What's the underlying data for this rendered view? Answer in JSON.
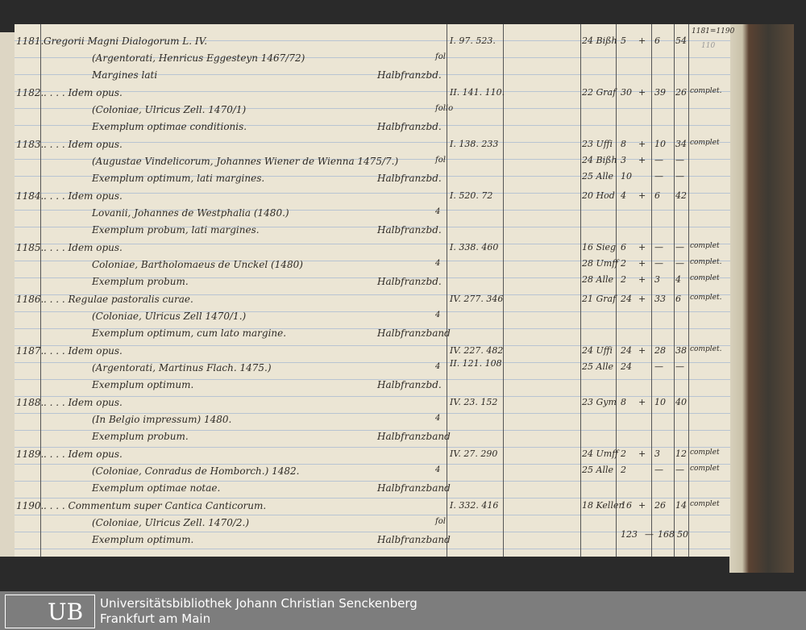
{
  "header": {
    "range": "1181=1190",
    "mark": "110"
  },
  "entries": [
    {
      "num": "1181.",
      "lines": [
        "Gregorii Magni Dialogorum L. IV.",
        "(Argentorati, Henricus Eggesteyn 1467/72)",
        "Margines lati"
      ],
      "format": "fol",
      "binding": "Halbfranzbd.",
      "refs": [
        "I. 97. 523."
      ],
      "rows": [
        [
          "24 Bißh",
          "5",
          "+",
          "6",
          "54",
          ""
        ]
      ]
    },
    {
      "num": "1182.",
      "lines": [
        ". . . .  Idem opus.",
        "(Coloniae, Ulricus Zell. 1470/1)",
        "Exemplum optimae conditionis."
      ],
      "format": "folio",
      "binding": "Halbfranzbd.",
      "refs": [
        "II. 141. 110."
      ],
      "rows": [
        [
          "22 Graf",
          "30",
          "+",
          "39",
          "26",
          "complet."
        ]
      ]
    },
    {
      "num": "1183.",
      "lines": [
        ". . . .  Idem opus.",
        "(Augustae Vindelicorum, Johannes Wiener de Wienna 1475/7.)",
        "Exemplum optimum, lati margines."
      ],
      "format": "fol",
      "binding": "Halbfranzbd.",
      "refs": [
        "I. 138. 233"
      ],
      "rows": [
        [
          "23 Uffi",
          "8",
          "+",
          "10",
          "34",
          "complet"
        ],
        [
          "24 Bißh",
          "3",
          "+",
          "—",
          "—",
          ""
        ],
        [
          "25 Alle",
          "10",
          "",
          "—",
          "—",
          ""
        ]
      ]
    },
    {
      "num": "1184.",
      "lines": [
        ". . . .  Idem opus.",
        "Lovanii, Johannes de Westphalia (1480.)",
        "Exemplum probum, lati margines."
      ],
      "format": "4",
      "binding": "Halbfranzbd.",
      "refs": [
        "I. 520. 72"
      ],
      "rows": [
        [
          "20 Hod",
          "4",
          "+",
          "6",
          "42",
          ""
        ]
      ]
    },
    {
      "num": "1185.",
      "lines": [
        ". . . .  Idem opus.",
        "Coloniae, Bartholomaeus de Unckel (1480)",
        "Exemplum probum."
      ],
      "format": "4",
      "binding": "Halbfranzbd.",
      "refs": [
        "I. 338. 460"
      ],
      "rows": [
        [
          "16 Sieg",
          "6",
          "+",
          "—",
          "—",
          "complet"
        ],
        [
          "28 Umff",
          "2",
          "+",
          "—",
          "—",
          "complet."
        ],
        [
          "28 Alle",
          "2",
          "+",
          "3",
          "4",
          "complet"
        ]
      ]
    },
    {
      "num": "1186.",
      "lines": [
        ". . . .  Regulae pastoralis curae.",
        "(Coloniae, Ulricus Zell 1470/1.)",
        "Exemplum optimum, cum lato margine."
      ],
      "format": "4",
      "binding": "Halbfranzband",
      "refs": [
        "IV. 277. 346"
      ],
      "rows": [
        [
          "21 Graf",
          "24",
          "+",
          "33",
          "6",
          "complet."
        ]
      ]
    },
    {
      "num": "1187.",
      "lines": [
        ". . . .  Idem opus.",
        "(Argentorati, Martinus Flach. 1475.)",
        "Exemplum optimum."
      ],
      "format": "4",
      "binding": "Halbfranzbd.",
      "refs": [
        "IV. 227. 482",
        "II. 121. 108"
      ],
      "rows": [
        [
          "24 Uffi",
          "24",
          "+",
          "28",
          "38",
          "complet."
        ],
        [
          "25 Alle",
          "24",
          "",
          "—",
          "—",
          ""
        ]
      ]
    },
    {
      "num": "1188.",
      "lines": [
        ". . . .  Idem opus.",
        "(In Belgio impressum) 1480.",
        "Exemplum probum."
      ],
      "format": "4",
      "binding": "Halbfranzband",
      "refs": [
        "IV. 23. 152"
      ],
      "rows": [
        [
          "23 Gym",
          "8",
          "+",
          "10",
          "40",
          ""
        ]
      ]
    },
    {
      "num": "1189.",
      "lines": [
        ". . . .  Idem opus.",
        "(Coloniae, Conradus de Homborch.) 1482.",
        "Exemplum optimae notae."
      ],
      "format": "4",
      "binding": "Halbfranzband",
      "refs": [
        "IV. 27. 290"
      ],
      "rows": [
        [
          "24 Umff",
          "2",
          "+",
          "3",
          "12",
          "complet"
        ],
        [
          "25 Alle",
          "2",
          "",
          "—",
          "—",
          "complet"
        ]
      ]
    },
    {
      "num": "1190.",
      "lines": [
        ". . . .  Commentum super Cantica Canticorum.",
        "(Coloniae, Ulricus Zell. 1470/2.)",
        "Exemplum optimum."
      ],
      "format": "fol",
      "binding": "Halbfranzband",
      "refs": [
        "I. 332. 416"
      ],
      "rows": [
        [
          "18 Keller",
          "16",
          "+",
          "26",
          "14",
          "complet"
        ]
      ]
    }
  ],
  "totals": [
    "123",
    "—",
    "168",
    "50"
  ],
  "footer": {
    "logo": "UB",
    "line1": "Universitätsbibliothek Johann Christian Senckenberg",
    "line2": "Frankfurt am Main"
  }
}
